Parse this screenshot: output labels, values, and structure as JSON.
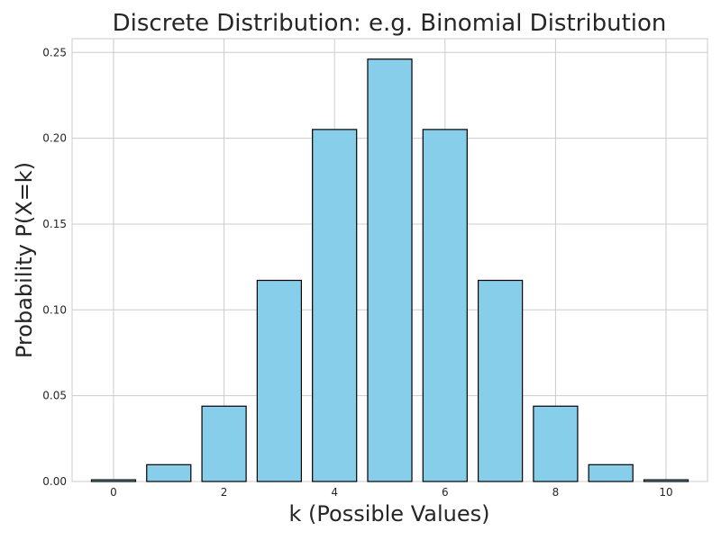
{
  "chart_data": {
    "type": "bar",
    "title": "Discrete Distribution: e.g. Binomial Distribution",
    "xlabel": "k (Possible Values)",
    "ylabel": "Probability P(X=k)",
    "x": [
      0,
      1,
      2,
      3,
      4,
      5,
      6,
      7,
      8,
      9,
      10
    ],
    "values": [
      0.001,
      0.0098,
      0.0439,
      0.1172,
      0.2051,
      0.2461,
      0.2051,
      0.1172,
      0.0439,
      0.0098,
      0.001
    ],
    "xlim": [
      -0.75,
      10.75
    ],
    "ylim": [
      0,
      0.258
    ],
    "xticks": [
      0,
      2,
      4,
      6,
      8,
      10
    ],
    "xtick_labels": [
      "0",
      "2",
      "4",
      "6",
      "8",
      "10"
    ],
    "yticks": [
      0.0,
      0.05,
      0.1,
      0.15,
      0.2,
      0.25
    ],
    "ytick_labels": [
      "0.00",
      "0.05",
      "0.10",
      "0.15",
      "0.20",
      "0.25"
    ],
    "bar_width": 0.8,
    "grid": true,
    "colors": {
      "bar_fill": "#87ceeb",
      "bar_edge": "#000000",
      "grid": "#cccccc",
      "text": "#262626"
    }
  }
}
